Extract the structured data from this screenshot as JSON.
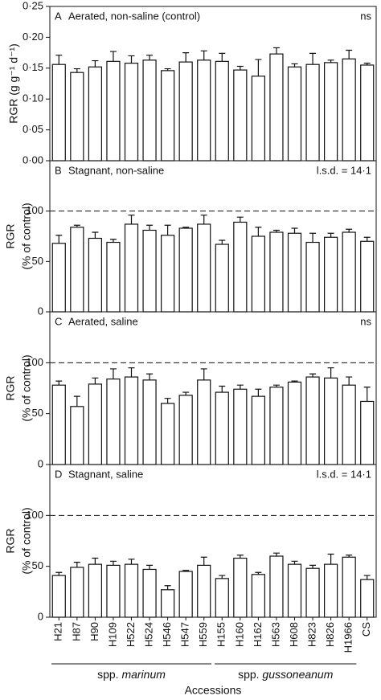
{
  "chart_data": [
    {
      "type": "bar",
      "panel_label": "A",
      "title": "Aerated, non-saline (control)",
      "annotation": "ns",
      "ylabel": [
        "RGR (g g⁻¹ d⁻¹)"
      ],
      "values": [
        0.156,
        0.143,
        0.152,
        0.161,
        0.158,
        0.163,
        0.146,
        0.16,
        0.163,
        0.161,
        0.147,
        0.137,
        0.173,
        0.152,
        0.156,
        0.159,
        0.165,
        0.155
      ],
      "errors": [
        0.015,
        0.006,
        0.01,
        0.016,
        0.012,
        0.008,
        0.003,
        0.015,
        0.015,
        0.013,
        0.006,
        0.027,
        0.01,
        0.005,
        0.018,
        0.004,
        0.014,
        0.003
      ],
      "ylim": [
        0,
        0.25
      ],
      "yticks": [
        {
          "value": 0,
          "label": "0·00"
        },
        {
          "value": 0.05,
          "label": "0·05"
        },
        {
          "value": 0.1,
          "label": "0·10"
        },
        {
          "value": 0.15,
          "label": "0·15"
        },
        {
          "value": 0.2,
          "label": "0·20"
        },
        {
          "value": 0.25,
          "label": "0·25"
        }
      ]
    },
    {
      "type": "bar",
      "panel_label": "B",
      "title": "Stagnant, non-saline",
      "annotation": "l.s.d. = 14·1",
      "ylabel": [
        "RGR",
        "(% of control)"
      ],
      "reference_line": 100,
      "values": [
        68,
        84,
        73,
        69,
        87,
        81,
        76,
        83,
        87,
        67,
        89,
        75,
        79,
        78,
        69,
        74,
        79,
        70
      ],
      "errors": [
        8,
        2,
        6,
        3,
        9,
        5,
        10,
        1,
        9,
        4,
        5,
        9,
        2,
        5,
        9,
        4,
        3,
        4
      ],
      "ylim": [
        0,
        150
      ],
      "yticks": [
        0,
        50,
        100
      ]
    },
    {
      "type": "bar",
      "panel_label": "C",
      "title": "Aerated, saline",
      "annotation": "ns",
      "ylabel": [
        "RGR",
        "(% of control)"
      ],
      "reference_line": 100,
      "values": [
        78,
        57,
        79,
        84,
        86,
        83,
        60,
        68,
        83,
        71,
        74,
        67,
        76,
        81,
        86,
        85,
        78,
        62
      ],
      "errors": [
        4,
        10,
        6,
        10,
        9,
        6,
        5,
        3,
        11,
        6,
        4,
        7,
        2,
        1,
        3,
        10,
        8,
        14
      ],
      "ylim": [
        0,
        150
      ],
      "yticks": [
        0,
        50,
        100
      ]
    },
    {
      "type": "bar",
      "panel_label": "D",
      "title": "Stagnant, saline",
      "annotation": "l.s.d. = 14·1",
      "ylabel": [
        "RGR",
        "(% of control)"
      ],
      "reference_line": 100,
      "values": [
        41,
        49,
        52,
        51,
        52,
        47,
        27,
        45,
        51,
        38,
        58,
        42,
        60,
        52,
        48,
        52,
        59,
        37
      ],
      "errors": [
        3,
        5,
        6,
        4,
        5,
        4,
        4,
        1,
        8,
        3,
        3,
        2,
        3,
        3,
        3,
        10,
        2,
        4
      ],
      "ylim": [
        0,
        150
      ],
      "yticks": [
        0,
        50,
        100
      ],
      "categories": [
        "H21",
        "H87",
        "H90",
        "H109",
        "H522",
        "H524",
        "H546",
        "H547",
        "H559",
        "H155",
        "H160",
        "H162",
        "H563",
        "H608",
        "H823",
        "H826",
        "H1966",
        "CS"
      ],
      "groups": [
        [
          "spp. ",
          "marinum"
        ],
        [
          "spp. ",
          "gussoneanum"
        ]
      ],
      "xlabel": "Accessions"
    }
  ]
}
